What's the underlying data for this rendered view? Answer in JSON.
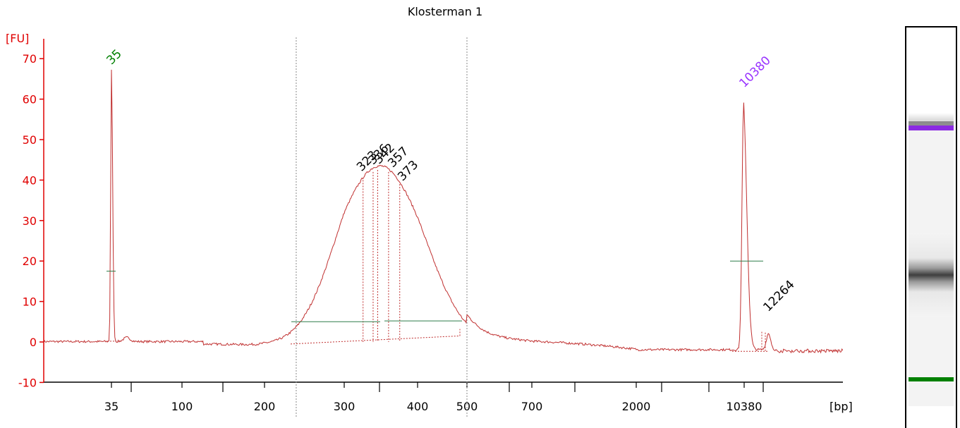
{
  "chart_data": {
    "type": "line",
    "title": "Klosterman 1",
    "ylabel": "[FU]",
    "xlabel": "[bp]",
    "ylim": [
      -10,
      75
    ],
    "y_ticks": [
      -10,
      0,
      10,
      20,
      30,
      40,
      50,
      60,
      70
    ],
    "x_tick_labels": [
      "35",
      "100",
      "200",
      "300",
      "400",
      "500",
      "700",
      "2000",
      "10380"
    ],
    "peak_labels": [
      {
        "text": "35",
        "bp": 35,
        "fu": 67,
        "color": "#008000"
      },
      {
        "text": "323",
        "bp": 323,
        "fu": 41,
        "color": "#000000"
      },
      {
        "text": "336",
        "bp": 336,
        "fu": 43,
        "color": "#000000"
      },
      {
        "text": "342",
        "bp": 342,
        "fu": 43.5,
        "color": "#000000"
      },
      {
        "text": "357",
        "bp": 357,
        "fu": 43,
        "color": "#000000"
      },
      {
        "text": "373",
        "bp": 373,
        "fu": 40,
        "color": "#000000"
      },
      {
        "text": "10380",
        "bp": 10380,
        "fu": 61,
        "color": "#9933ff"
      },
      {
        "text": "12264",
        "bp": 12264,
        "fu": 6,
        "color": "#000000"
      }
    ],
    "region_bounds_bp": [
      235,
      500
    ],
    "trace_color": "#c03030",
    "axis_color": "#e00000",
    "gel": {
      "upper_marker_color": "#8b2be2",
      "lower_marker_color": "#008000"
    }
  }
}
